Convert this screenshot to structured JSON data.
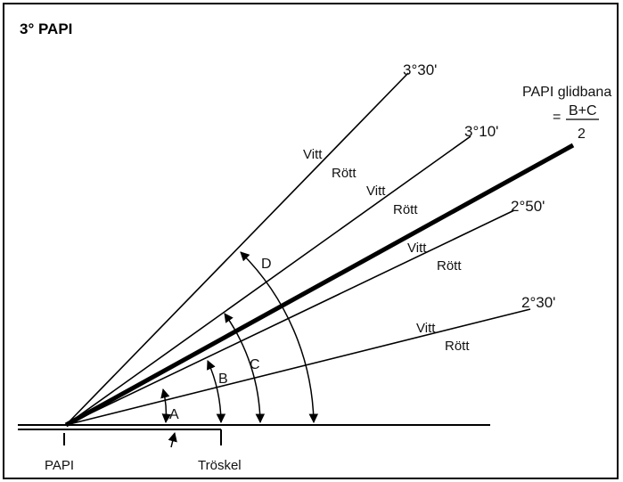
{
  "title": "3° PAPI",
  "angles": {
    "a330": "3°30'",
    "a310": "3°10'",
    "a250": "2°50'",
    "a230": "2°30'"
  },
  "glidepath": {
    "label": "PAPI glidbana",
    "equals": "=",
    "numerator": "B+C",
    "denominator": "2"
  },
  "colors": {
    "white": "Vitt",
    "red": "Rött"
  },
  "arc_labels": [
    "A",
    "B",
    "C",
    "D"
  ],
  "ground": {
    "papi": "PAPI",
    "threshold": "Tröskel"
  }
}
